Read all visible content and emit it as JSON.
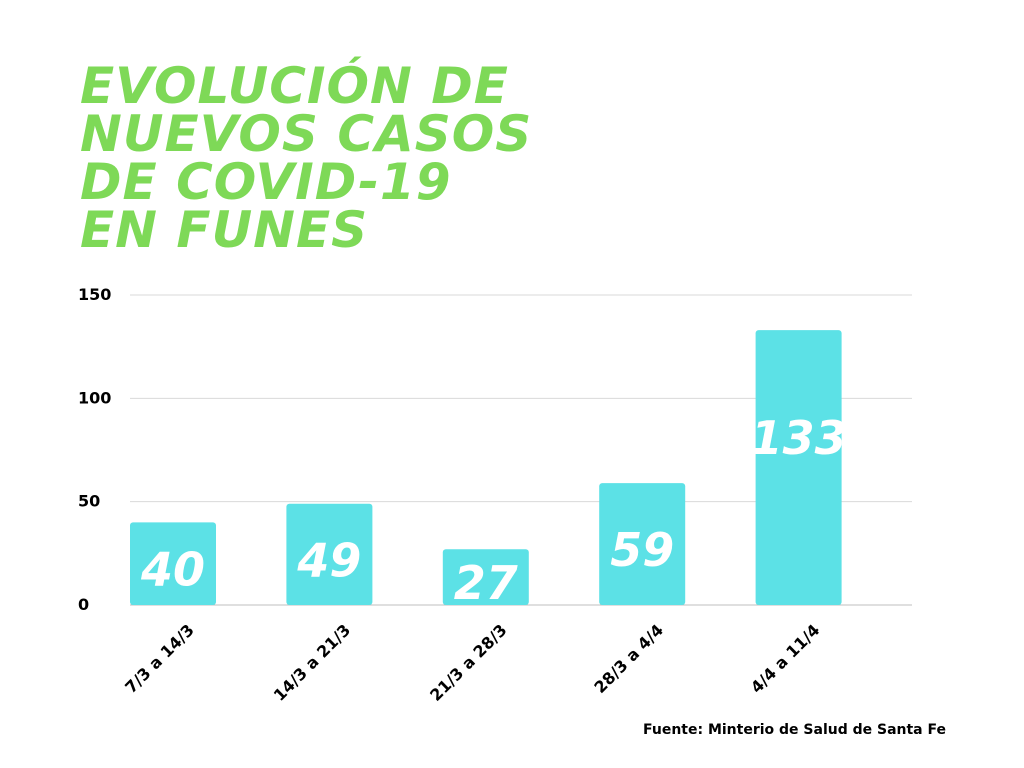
{
  "title_lines": [
    "EVOLUCIÓN DE",
    "NUEVOS CASOS",
    "DE COVID-19",
    "EN FUNES"
  ],
  "source": "Fuente: Minterio de Salud de Santa Fe",
  "colors": {
    "title": "#7ed957",
    "bar": "#5ce1e6",
    "bar_label": "#ffffff",
    "grid": "#d9d9d9",
    "text": "#000000"
  },
  "chart_data": {
    "type": "bar",
    "categories": [
      "7/3 a 14/3",
      "14/3 a 21/3",
      "21/3 a 28/3",
      "28/3 a 4/4",
      "4/4 a 11/4"
    ],
    "values": [
      40,
      49,
      27,
      59,
      133
    ],
    "ylim": [
      0,
      150
    ],
    "yticks": [
      0,
      50,
      100,
      150
    ],
    "grid": true,
    "legend": "none"
  }
}
